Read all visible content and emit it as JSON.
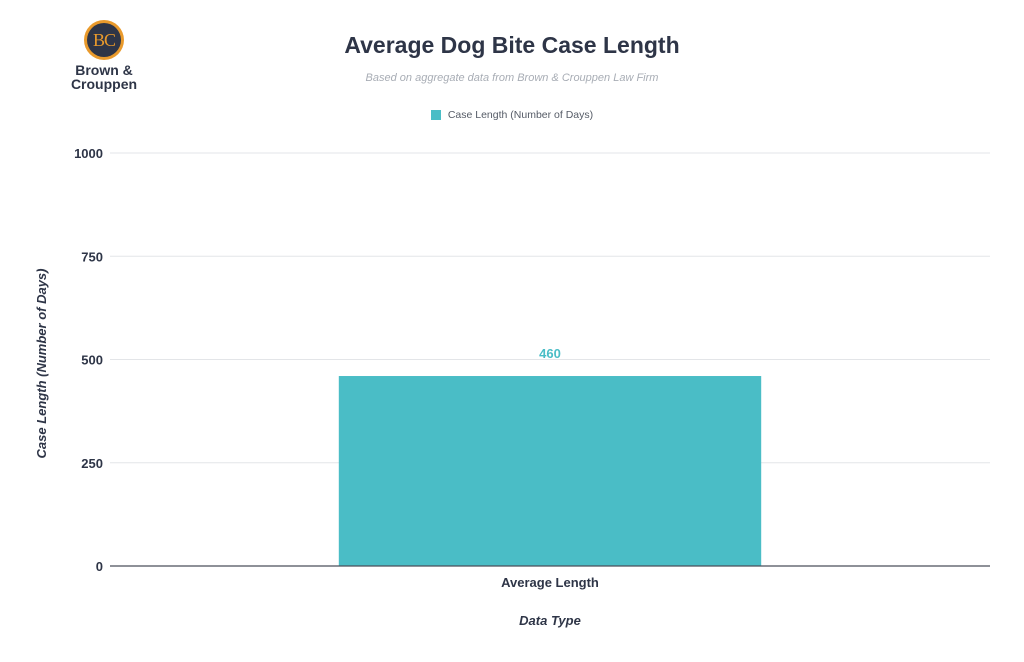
{
  "logo": {
    "monogram": "BC",
    "name_line1": "Brown &",
    "name_line2": "Crouppen"
  },
  "colors": {
    "bar": "#4abdc6",
    "text": "#2e3547",
    "grid": "#e3e5e8",
    "axis": "#4a4f5a",
    "logo_accent": "#e99a2c"
  },
  "chart_data": {
    "type": "bar",
    "title": "Average Dog Bite Case Length",
    "subtitle": "Based on aggregate data from Brown & Crouppen Law Firm",
    "categories": [
      "Average Length"
    ],
    "series": [
      {
        "name": "Case Length (Number of Days)",
        "values": [
          460
        ]
      }
    ],
    "data_labels": [
      "460"
    ],
    "xlabel": "Data Type",
    "ylabel": "Case Length (Number of Days)",
    "ylim": [
      0,
      1000
    ],
    "yticks": [
      0,
      250,
      500,
      750,
      1000
    ],
    "grid": true,
    "legend": "top-center"
  }
}
